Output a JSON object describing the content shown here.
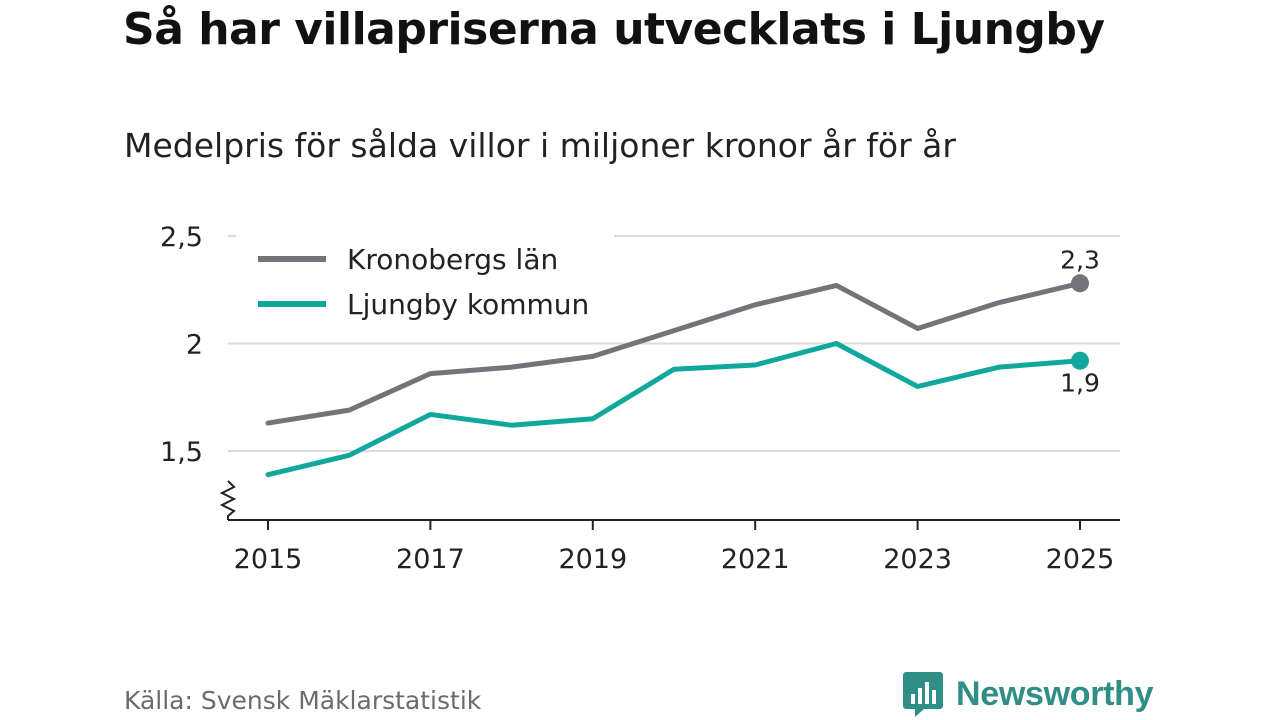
{
  "title": "Så har villapriserna utvecklats i Ljungby",
  "subtitle": "Medelpris för sålda villor i miljoner kronor år för år",
  "source": "Källa: Svensk Mäklarstatistik",
  "brand": "Newsworthy",
  "colors": {
    "kronoberg": "#747379",
    "ljungby": "#10a89d",
    "grid": "#dcdcdc",
    "axis": "#222222",
    "brand": "#2f8f86"
  },
  "chart_data": {
    "type": "line",
    "x": [
      2015,
      2016,
      2017,
      2018,
      2019,
      2020,
      2021,
      2022,
      2023,
      2024,
      2025
    ],
    "x_tick_labels": [
      "2015",
      "2017",
      "2019",
      "2021",
      "2023",
      "2025"
    ],
    "y_tick_values": [
      1.5,
      2,
      2.5
    ],
    "y_tick_labels": [
      "1,5",
      "2",
      "2,5"
    ],
    "ylim": [
      1.18,
      2.5
    ],
    "axis_break": true,
    "grid": true,
    "legend_position": "top-left",
    "series": [
      {
        "name": "Kronobergs län",
        "color_key": "kronoberg",
        "end_label": "2,3",
        "end_label_position": "above",
        "values": [
          1.63,
          1.69,
          1.86,
          1.89,
          1.94,
          2.06,
          2.18,
          2.27,
          2.07,
          2.19,
          2.28
        ]
      },
      {
        "name": "Ljungby kommun",
        "color_key": "ljungby",
        "end_label": "1,9",
        "end_label_position": "below",
        "values": [
          1.39,
          1.48,
          1.67,
          1.62,
          1.65,
          1.88,
          1.9,
          2.0,
          1.8,
          1.89,
          1.92
        ]
      }
    ]
  }
}
